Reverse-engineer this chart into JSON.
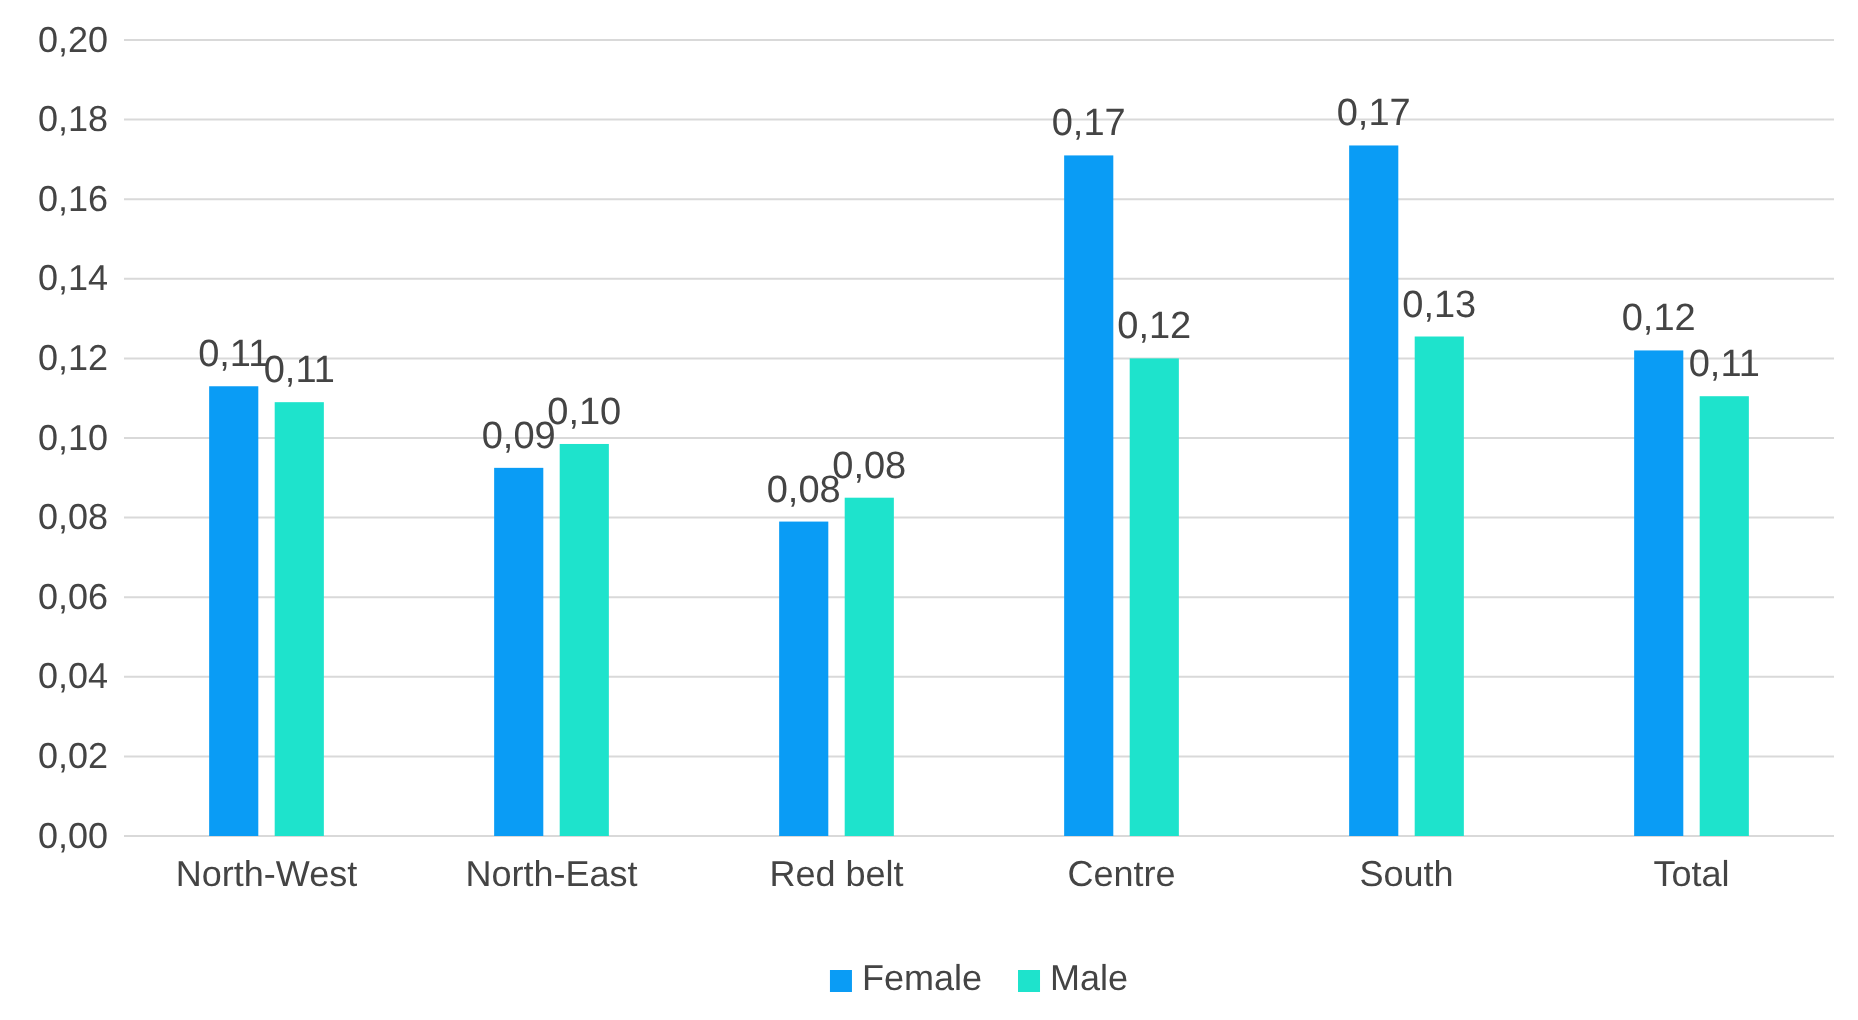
{
  "chart_data": {
    "type": "bar",
    "categories": [
      "North-West",
      "North-East",
      "Red belt",
      "Centre",
      "South",
      "Total"
    ],
    "series": [
      {
        "name": "Female",
        "color": "#0a9cf5",
        "values": [
          0.113,
          0.0925,
          0.079,
          0.171,
          0.1735,
          0.122
        ],
        "value_labels": [
          "0,11",
          "0,09",
          "0,08",
          "0,17",
          "0,17",
          "0,12"
        ]
      },
      {
        "name": "Male",
        "color": "#1ee3cc",
        "values": [
          0.109,
          0.0985,
          0.085,
          0.12,
          0.1255,
          0.1105
        ],
        "value_labels": [
          "0,11",
          "0,10",
          "0,08",
          "0,12",
          "0,13",
          "0,11"
        ]
      }
    ],
    "ylim": [
      0,
      0.2
    ],
    "yticks": [
      {
        "value": 0,
        "label": "0,00"
      },
      {
        "value": 0.02,
        "label": "0,02"
      },
      {
        "value": 0.04,
        "label": "0,04"
      },
      {
        "value": 0.06,
        "label": "0,06"
      },
      {
        "value": 0.08,
        "label": "0,08"
      },
      {
        "value": 0.1,
        "label": "0,10"
      },
      {
        "value": 0.12,
        "label": "0,12"
      },
      {
        "value": 0.14,
        "label": "0,14"
      },
      {
        "value": 0.16,
        "label": "0,16"
      },
      {
        "value": 0.18,
        "label": "0,18"
      },
      {
        "value": 0.2,
        "label": "0,20"
      }
    ],
    "grid": "y",
    "legend": "bottom"
  }
}
